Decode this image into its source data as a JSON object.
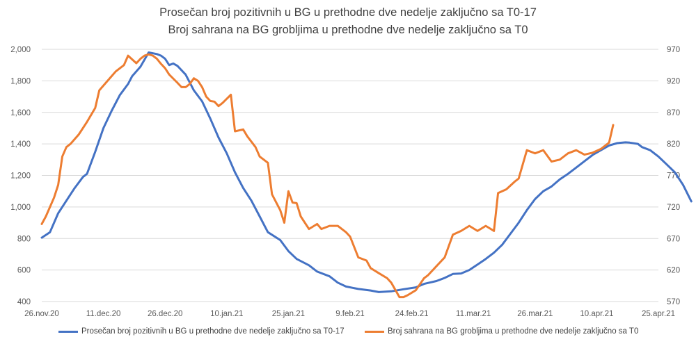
{
  "title": {
    "line1": "Prosečan broj pozitivnih u BG u prethodne dve nedelje zaključno sa T0-17",
    "line2": "Broj sahrana na BG grobljima u prethodne dve nedelje zaključno sa T0"
  },
  "colors": {
    "blue": "#4472C4",
    "orange": "#ED7D31",
    "grid": "#D9D9D9"
  },
  "chart_data": {
    "type": "line",
    "title": "Prosečan broj pozitivnih u BG u prethodne dve nedelje zaključno sa T0-17 / Broj sahrana na BG grobljima u prethodne dve nedelje zaključno sa T0",
    "x_tick_labels": [
      "26.nov.20",
      "11.dec.20",
      "26.dec.20",
      "10.jan.21",
      "25.jan.21",
      "9.feb.21",
      "24.feb.21",
      "11.mar.21",
      "26.mar.21",
      "10.apr.21",
      "25.apr.21"
    ],
    "x_range": [
      "2020-11-26",
      "2021-04-25"
    ],
    "y_left": {
      "ticks": [
        "400",
        "600",
        "800",
        "1,000",
        "1,200",
        "1,400",
        "1,600",
        "1,800",
        "2,000"
      ],
      "range": [
        400,
        2000
      ]
    },
    "y_right": {
      "ticks": [
        "570",
        "620",
        "670",
        "720",
        "770",
        "820",
        "870",
        "920",
        "970"
      ],
      "range": [
        570,
        970
      ]
    },
    "grid": true,
    "legend_position": "bottom",
    "series": [
      {
        "name": "Prosečan broj pozitivnih u BG u prethodne dve nedelje zaključno sa T0-17",
        "axis": "left",
        "color": "#4472C4",
        "points": [
          [
            "2020-11-26",
            805
          ],
          [
            "2020-11-28",
            840
          ],
          [
            "2020-11-30",
            960
          ],
          [
            "2020-12-02",
            1040
          ],
          [
            "2020-12-04",
            1120
          ],
          [
            "2020-12-06",
            1190
          ],
          [
            "2020-12-07",
            1210
          ],
          [
            "2020-12-09",
            1350
          ],
          [
            "2020-12-11",
            1500
          ],
          [
            "2020-12-13",
            1610
          ],
          [
            "2020-12-15",
            1710
          ],
          [
            "2020-12-17",
            1780
          ],
          [
            "2020-12-18",
            1830
          ],
          [
            "2020-12-20",
            1890
          ],
          [
            "2020-12-22",
            1980
          ],
          [
            "2020-12-24",
            1970
          ],
          [
            "2020-12-25",
            1960
          ],
          [
            "2020-12-26",
            1940
          ],
          [
            "2020-12-27",
            1900
          ],
          [
            "2020-12-28",
            1910
          ],
          [
            "2020-12-29",
            1895
          ],
          [
            "2020-12-31",
            1840
          ],
          [
            "2021-01-02",
            1740
          ],
          [
            "2021-01-04",
            1670
          ],
          [
            "2021-01-06",
            1560
          ],
          [
            "2021-01-08",
            1440
          ],
          [
            "2021-01-10",
            1340
          ],
          [
            "2021-01-12",
            1220
          ],
          [
            "2021-01-14",
            1120
          ],
          [
            "2021-01-16",
            1040
          ],
          [
            "2021-01-18",
            940
          ],
          [
            "2021-01-20",
            840
          ],
          [
            "2021-01-23",
            790
          ],
          [
            "2021-01-25",
            720
          ],
          [
            "2021-01-27",
            670
          ],
          [
            "2021-01-30",
            630
          ],
          [
            "2021-02-01",
            590
          ],
          [
            "2021-02-04",
            560
          ],
          [
            "2021-02-06",
            520
          ],
          [
            "2021-02-08",
            495
          ],
          [
            "2021-02-11",
            480
          ],
          [
            "2021-02-14",
            470
          ],
          [
            "2021-02-16",
            460
          ],
          [
            "2021-02-19",
            465
          ],
          [
            "2021-02-22",
            478
          ],
          [
            "2021-02-25",
            490
          ],
          [
            "2021-02-27",
            512
          ],
          [
            "2021-03-02",
            530
          ],
          [
            "2021-03-04",
            550
          ],
          [
            "2021-03-06",
            575
          ],
          [
            "2021-03-08",
            578
          ],
          [
            "2021-03-10",
            600
          ],
          [
            "2021-03-12",
            635
          ],
          [
            "2021-03-14",
            670
          ],
          [
            "2021-03-16",
            710
          ],
          [
            "2021-03-18",
            760
          ],
          [
            "2021-03-20",
            830
          ],
          [
            "2021-03-22",
            900
          ],
          [
            "2021-03-24",
            980
          ],
          [
            "2021-03-26",
            1050
          ],
          [
            "2021-03-28",
            1100
          ],
          [
            "2021-03-30",
            1130
          ],
          [
            "2021-04-01",
            1175
          ],
          [
            "2021-04-03",
            1210
          ],
          [
            "2021-04-05",
            1250
          ],
          [
            "2021-04-07",
            1290
          ],
          [
            "2021-04-09",
            1330
          ],
          [
            "2021-04-11",
            1360
          ],
          [
            "2021-04-13",
            1390
          ],
          [
            "2021-04-15",
            1405
          ],
          [
            "2021-04-17",
            1410
          ],
          [
            "2021-04-18",
            1408
          ],
          [
            "2021-04-20",
            1400
          ],
          [
            "2021-04-21",
            1380
          ],
          [
            "2021-04-23",
            1360
          ],
          [
            "2021-04-25",
            1320
          ],
          [
            "2021-04-27",
            1270
          ],
          [
            "2021-04-29",
            1220
          ],
          [
            "2021-05-01",
            1140
          ],
          [
            "2021-05-03",
            1035
          ]
        ]
      },
      {
        "name": "Broj sahrana na BG grobljima u prethodne dve nedelje zaključno sa T0",
        "axis": "right",
        "color": "#ED7D31",
        "points": [
          [
            "2020-11-26",
            693
          ],
          [
            "2020-11-27",
            705
          ],
          [
            "2020-11-29",
            735
          ],
          [
            "2020-11-30",
            755
          ],
          [
            "2020-12-01",
            800
          ],
          [
            "2020-12-02",
            815
          ],
          [
            "2020-12-03",
            820
          ],
          [
            "2020-12-05",
            835
          ],
          [
            "2020-12-07",
            855
          ],
          [
            "2020-12-09",
            877
          ],
          [
            "2020-12-10",
            905
          ],
          [
            "2020-12-12",
            920
          ],
          [
            "2020-12-14",
            935
          ],
          [
            "2020-12-16",
            945
          ],
          [
            "2020-12-17",
            960
          ],
          [
            "2020-12-19",
            948
          ],
          [
            "2020-12-20",
            955
          ],
          [
            "2020-12-21",
            960
          ],
          [
            "2020-12-22",
            962
          ],
          [
            "2020-12-23",
            960
          ],
          [
            "2020-12-24",
            955
          ],
          [
            "2020-12-25",
            947
          ],
          [
            "2020-12-26",
            940
          ],
          [
            "2020-12-27",
            930
          ],
          [
            "2020-12-29",
            917
          ],
          [
            "2020-12-30",
            910
          ],
          [
            "2020-12-31",
            910
          ],
          [
            "2021-01-01",
            915
          ],
          [
            "2021-01-02",
            924
          ],
          [
            "2021-01-03",
            920
          ],
          [
            "2021-01-04",
            910
          ],
          [
            "2021-01-05",
            895
          ],
          [
            "2021-01-06",
            888
          ],
          [
            "2021-01-07",
            887
          ],
          [
            "2021-01-08",
            880
          ],
          [
            "2021-01-09",
            885
          ],
          [
            "2021-01-11",
            898
          ],
          [
            "2021-01-12",
            840
          ],
          [
            "2021-01-14",
            843
          ],
          [
            "2021-01-15",
            832
          ],
          [
            "2021-01-17",
            815
          ],
          [
            "2021-01-18",
            800
          ],
          [
            "2021-01-19",
            795
          ],
          [
            "2021-01-20",
            790
          ],
          [
            "2021-01-21",
            740
          ],
          [
            "2021-01-23",
            715
          ],
          [
            "2021-01-24",
            695
          ],
          [
            "2021-01-25",
            745
          ],
          [
            "2021-01-26",
            727
          ],
          [
            "2021-01-27",
            726
          ],
          [
            "2021-01-28",
            705
          ],
          [
            "2021-01-30",
            685
          ],
          [
            "2021-02-01",
            693
          ],
          [
            "2021-02-02",
            685
          ],
          [
            "2021-02-04",
            690
          ],
          [
            "2021-02-06",
            690
          ],
          [
            "2021-02-08",
            680
          ],
          [
            "2021-02-09",
            673
          ],
          [
            "2021-02-11",
            640
          ],
          [
            "2021-02-13",
            635
          ],
          [
            "2021-02-14",
            623
          ],
          [
            "2021-02-16",
            615
          ],
          [
            "2021-02-18",
            607
          ],
          [
            "2021-02-19",
            600
          ],
          [
            "2021-02-21",
            577
          ],
          [
            "2021-02-22",
            577
          ],
          [
            "2021-02-23",
            580
          ],
          [
            "2021-02-25",
            588
          ],
          [
            "2021-02-27",
            607
          ],
          [
            "2021-02-28",
            612
          ],
          [
            "2021-03-02",
            626
          ],
          [
            "2021-03-04",
            640
          ],
          [
            "2021-03-06",
            676
          ],
          [
            "2021-03-08",
            682
          ],
          [
            "2021-03-10",
            690
          ],
          [
            "2021-03-12",
            682
          ],
          [
            "2021-03-14",
            690
          ],
          [
            "2021-03-16",
            682
          ],
          [
            "2021-03-17",
            742
          ],
          [
            "2021-03-19",
            748
          ],
          [
            "2021-03-21",
            760
          ],
          [
            "2021-03-22",
            765
          ],
          [
            "2021-03-24",
            810
          ],
          [
            "2021-03-26",
            805
          ],
          [
            "2021-03-28",
            810
          ],
          [
            "2021-03-30",
            792
          ],
          [
            "2021-04-01",
            795
          ],
          [
            "2021-04-03",
            805
          ],
          [
            "2021-04-05",
            810
          ],
          [
            "2021-04-07",
            803
          ],
          [
            "2021-04-09",
            806
          ],
          [
            "2021-04-11",
            812
          ],
          [
            "2021-04-13",
            822
          ],
          [
            "2021-04-14",
            850
          ]
        ]
      }
    ]
  }
}
